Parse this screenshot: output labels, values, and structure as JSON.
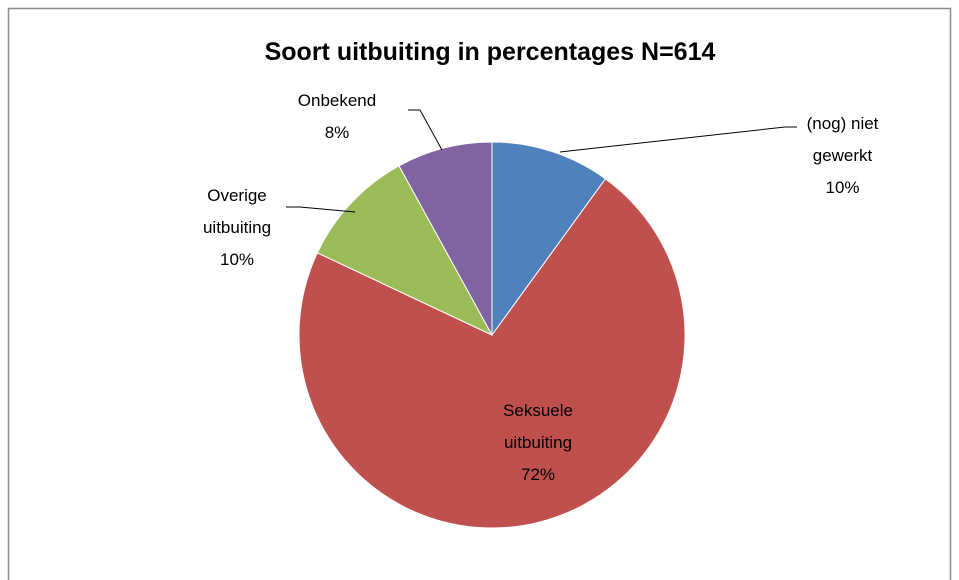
{
  "chart_data": {
    "type": "pie",
    "title": "Soort uitbuiting in percentages N=614",
    "categories": [
      "(nog) niet gewerkt",
      "Seksuele uitbuiting",
      "Overige uitbuiting",
      "Onbekend"
    ],
    "values": [
      10,
      72,
      10,
      8
    ],
    "value_labels": [
      "10%",
      "72%",
      "10%",
      "8%"
    ],
    "colors": [
      "#4f81bd",
      "#c0504d",
      "#9bbb59",
      "#8064a2"
    ]
  }
}
